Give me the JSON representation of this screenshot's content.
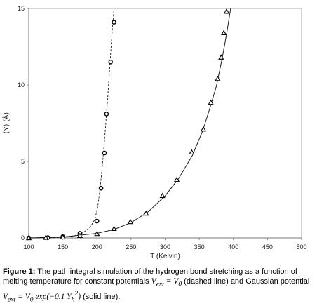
{
  "chart_data": {
    "type": "scatter",
    "xlabel": "T (Kelvin)",
    "ylabel": "⟨Y⟩ (Å)",
    "xlim": [
      100,
      500
    ],
    "ylim": [
      0,
      15
    ],
    "xticks": [
      "100",
      "150",
      "200",
      "250",
      "300",
      "350",
      "400",
      "450",
      "500"
    ],
    "yticks": [
      "0",
      "5",
      "10",
      "15"
    ],
    "grid": false,
    "series": [
      {
        "marker": "circle",
        "line": "dashed",
        "points": [
          [
            100,
            0.0
          ],
          [
            128,
            0.02
          ],
          [
            150,
            0.08
          ],
          [
            175,
            0.3
          ],
          [
            200,
            1.1
          ],
          [
            206,
            3.25
          ],
          [
            211,
            5.55
          ],
          [
            214,
            8.1
          ],
          [
            220,
            11.5
          ],
          [
            225,
            14.1
          ]
        ],
        "curve": [
          [
            100,
            0.0
          ],
          [
            130,
            0.01
          ],
          [
            150,
            0.03
          ],
          [
            165,
            0.1
          ],
          [
            180,
            0.35
          ],
          [
            190,
            0.7
          ],
          [
            197,
            1.2
          ],
          [
            201,
            2.0
          ],
          [
            204,
            3.0
          ],
          [
            207,
            4.3
          ],
          [
            210,
            5.8
          ],
          [
            213,
            7.5
          ],
          [
            216,
            9.3
          ],
          [
            219,
            11.3
          ],
          [
            222,
            13.3
          ],
          [
            225,
            15.0
          ]
        ]
      },
      {
        "marker": "triangle",
        "line": "solid",
        "points": [
          [
            100,
            0.0
          ],
          [
            125,
            0.02
          ],
          [
            150,
            0.05
          ],
          [
            175,
            0.14
          ],
          [
            200,
            0.27
          ],
          [
            225,
            0.6
          ],
          [
            249,
            1.05
          ],
          [
            272,
            1.6
          ],
          [
            296,
            2.75
          ],
          [
            317,
            3.8
          ],
          [
            339,
            5.6
          ],
          [
            356,
            7.1
          ],
          [
            367,
            8.85
          ],
          [
            377,
            10.4
          ],
          [
            382,
            11.8
          ],
          [
            386,
            13.4
          ],
          [
            390,
            14.8
          ]
        ],
        "curve": [
          [
            100,
            0.0
          ],
          [
            150,
            0.06
          ],
          [
            200,
            0.3
          ],
          [
            225,
            0.55
          ],
          [
            250,
            1.0
          ],
          [
            275,
            1.7
          ],
          [
            300,
            2.75
          ],
          [
            320,
            3.9
          ],
          [
            340,
            5.4
          ],
          [
            355,
            7.0
          ],
          [
            365,
            8.4
          ],
          [
            375,
            9.9
          ],
          [
            383,
            11.6
          ],
          [
            390,
            13.3
          ],
          [
            396,
            15.0
          ]
        ]
      }
    ]
  },
  "caption": {
    "figure_label": "Figure 1:",
    "text_1": " The path integral simulation of the hydrogen bond stretching as a function of melting temperature for constant potentials ",
    "potential_constant": "V",
    "potential_constant_sub": "ext",
    "eq_1": " = ",
    "v0": "V",
    "v0_sub": "0",
    "text_2": " (dashed line) and Gaussian potential ",
    "potential_gauss": "V",
    "potential_gauss_sub": "ext",
    "eq_2": " = ",
    "v0b": "V",
    "v0b_sub": "0",
    "exp_text": " exp(−0.1 Y",
    "yh_sub": "h",
    "yh_sup": "2",
    "close_paren": ")",
    "text_3": " (solid line)."
  }
}
